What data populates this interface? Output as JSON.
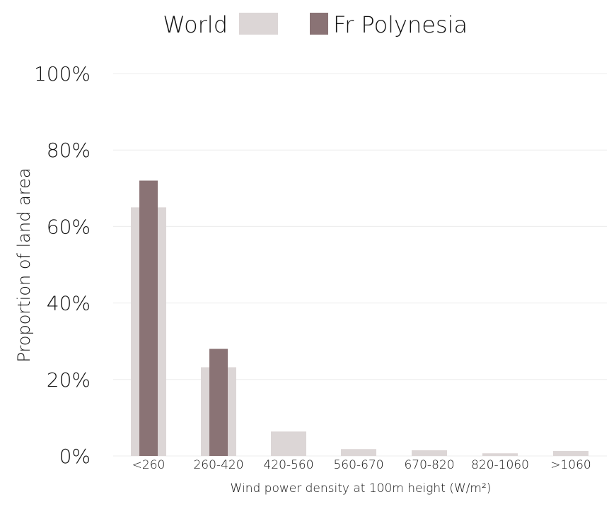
{
  "chart_data": {
    "type": "bar",
    "categories": [
      "<260",
      "260-420",
      "420-560",
      "560-670",
      "670-820",
      "820-1060",
      ">1060"
    ],
    "series": [
      {
        "name": "World",
        "values": [
          65,
          23.2,
          6.4,
          1.8,
          1.5,
          0.7,
          1.3
        ],
        "color": "#dcd6d6"
      },
      {
        "name": "Fr Polynesia",
        "values": [
          72,
          28,
          0,
          0,
          0,
          0,
          0
        ],
        "color": "#8a7375"
      }
    ],
    "xlabel": "Wind power density at 100m height (W/m²)",
    "ylabel": "Proportion of land area",
    "ylim": [
      0,
      100
    ],
    "yticks": [
      "0%",
      "20%",
      "40%",
      "60%",
      "80%",
      "100%"
    ],
    "ytick_values": [
      0,
      20,
      40,
      60,
      80,
      100
    ],
    "grid": true,
    "legend_position": "top-center"
  }
}
